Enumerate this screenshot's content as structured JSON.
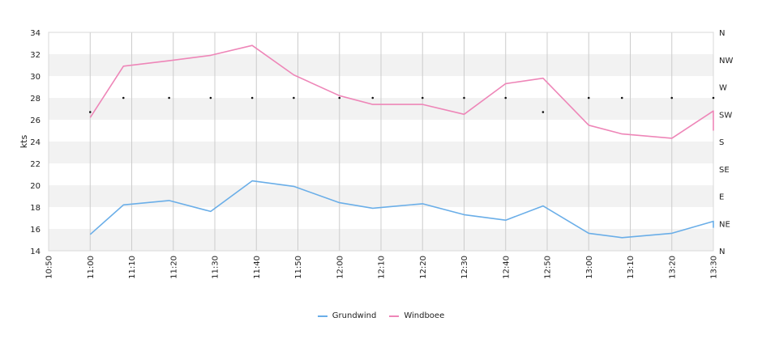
{
  "chart_data": {
    "type": "line",
    "x": [
      "11:00",
      "11:08",
      "11:19",
      "11:29",
      "11:39",
      "11:49",
      "12:00",
      "12:08",
      "12:20",
      "12:30",
      "12:40",
      "12:49",
      "13:00",
      "13:08",
      "13:20",
      "13:30",
      "13:30"
    ],
    "x_ticks": [
      "10:50",
      "11:00",
      "11:10",
      "11:20",
      "11:30",
      "11:40",
      "11:50",
      "12:00",
      "12:10",
      "12:20",
      "12:30",
      "12:40",
      "12:50",
      "13:00",
      "13:10",
      "13:20",
      "13:30"
    ],
    "ylabel": "kts",
    "ylim": [
      14,
      34
    ],
    "y_ticks": [
      14,
      16,
      18,
      20,
      22,
      24,
      26,
      28,
      30,
      32,
      34
    ],
    "grid": true,
    "legend_position": "bottom",
    "series": [
      {
        "name": "Grundwind",
        "color": "#6aaee8",
        "values": [
          15.5,
          18.2,
          18.6,
          17.6,
          20.4,
          19.9,
          18.4,
          17.9,
          18.3,
          17.3,
          16.8,
          18.1,
          15.6,
          15.2,
          15.6,
          16.7,
          16.1
        ]
      },
      {
        "name": "Windboee",
        "color": "#ee86b8",
        "values": [
          26.2,
          30.9,
          31.4,
          31.9,
          32.8,
          30.1,
          28.2,
          27.4,
          27.4,
          26.5,
          29.3,
          29.8,
          25.5,
          24.7,
          24.3,
          26.8,
          25.0
        ]
      }
    ],
    "direction_axis": {
      "labels": [
        "N",
        "NW",
        "W",
        "SW",
        "S",
        "SE",
        "E",
        "NE",
        "N"
      ]
    },
    "direction_markers": {
      "x": [
        "11:00",
        "11:08",
        "11:19",
        "11:29",
        "11:39",
        "11:49",
        "12:00",
        "12:08",
        "12:20",
        "12:30",
        "12:40",
        "12:49",
        "13:00",
        "13:08",
        "13:20",
        "13:30"
      ],
      "values": [
        26.7,
        28.0,
        28.0,
        28.0,
        28.0,
        28.0,
        28.0,
        28.0,
        28.0,
        28.0,
        28.0,
        26.7,
        28.0,
        28.0,
        28.0,
        28.0
      ]
    }
  }
}
